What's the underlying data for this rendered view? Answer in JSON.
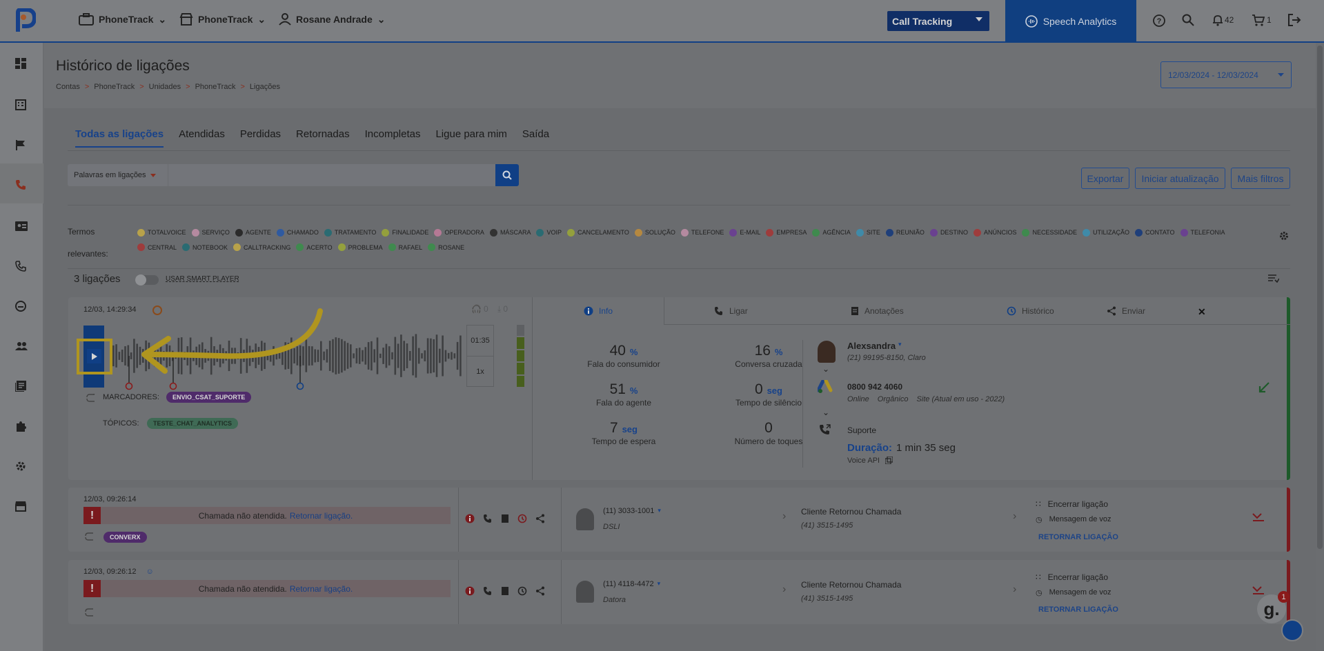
{
  "topbar": {
    "account1": "PhoneTrack",
    "account2": "PhoneTrack",
    "user": "Rosane Andrade",
    "product_select": "Call Tracking",
    "speech_analytics": "Speech Analytics",
    "notifications": "42",
    "cart": "1"
  },
  "page": {
    "title": "Histórico de ligações",
    "breadcrumb": [
      "Contas",
      "PhoneTrack",
      "Unidades",
      "PhoneTrack",
      "Ligações"
    ],
    "date_range": "12/03/2024 - 12/03/2024"
  },
  "tabs": [
    "Todas as ligações",
    "Atendidas",
    "Perdidas",
    "Retornadas",
    "Incompletas",
    "Ligue para mim",
    "Saída"
  ],
  "search": {
    "filter_label": "Palavras em ligações",
    "placeholder": ""
  },
  "actions": {
    "export": "Exportar",
    "refresh": "Iniciar atualização",
    "more_filters": "Mais filtros"
  },
  "terms": {
    "label_line1": "Termos",
    "label_line2": "relevantes:",
    "items": [
      {
        "label": "TOTALVOICE",
        "color": "#b8a24a"
      },
      {
        "label": "SERVIÇO",
        "color": "#b58aa0"
      },
      {
        "label": "AGENTE",
        "color": "#2b2b2b"
      },
      {
        "label": "CHAMADO",
        "color": "#2f5aa0"
      },
      {
        "label": "TRATAMENTO",
        "color": "#2a6b72"
      },
      {
        "label": "FINALIDADE",
        "color": "#94a03d"
      },
      {
        "label": "OPERADORA",
        "color": "#b57995"
      },
      {
        "label": "MÁSCARA",
        "color": "#333333"
      },
      {
        "label": "VOIP",
        "color": "#2a6b72"
      },
      {
        "label": "CANCELAMENTO",
        "color": "#94a03d"
      },
      {
        "label": "SOLUÇÃO",
        "color": "#b58840"
      },
      {
        "label": "TELEFONE",
        "color": "#b58aa0"
      },
      {
        "label": "E-MAIL",
        "color": "#6a4190"
      },
      {
        "label": "EMPRESA",
        "color": "#9e3c3c"
      },
      {
        "label": "AGÊNCIA",
        "color": "#3f8a4e"
      },
      {
        "label": "SITE",
        "color": "#3f8aa8"
      },
      {
        "label": "REUNIÃO",
        "color": "#1f3f7a"
      },
      {
        "label": "DESTINO",
        "color": "#6a4190"
      },
      {
        "label": "ANÚNCIOS",
        "color": "#9e3c3c"
      },
      {
        "label": "NECESSIDADE",
        "color": "#3f8a4e"
      },
      {
        "label": "UTILIZAÇÃO",
        "color": "#3f8aa8"
      },
      {
        "label": "CONTATO",
        "color": "#1f3f7a"
      },
      {
        "label": "TELEFONIA",
        "color": "#6a4190"
      },
      {
        "label": "CENTRAL",
        "color": "#9e3c3c"
      },
      {
        "label": "NOTEBOOK",
        "color": "#2a6b72"
      },
      {
        "label": "CALLTRACKING",
        "color": "#b8a24a"
      },
      {
        "label": "ACERTO",
        "color": "#3f8a4e"
      },
      {
        "label": "PROBLEMA",
        "color": "#94a03d"
      },
      {
        "label": "RAFAEL",
        "color": "#3f8a4e"
      },
      {
        "label": "ROSANE",
        "color": "#3f8a4e"
      }
    ]
  },
  "list": {
    "count": "3 ligações",
    "smart_player": "USAR SMART PLAYER"
  },
  "call1": {
    "datetime": "12/03, 14:29:34",
    "listen_count": "0",
    "download_count": "0",
    "duration": "01:35",
    "speed": "1x",
    "markers_label": "MARCADORES:",
    "marker_chip": "ENVIO_CSAT_SUPORTE",
    "topics_label": "TÓPICOS:",
    "topic_chip": "TESTE_CHAT_ANALYTICS",
    "tabs": [
      "Info",
      "Ligar",
      "Anotações",
      "Histórico",
      "Enviar"
    ],
    "stats": [
      {
        "value": "40",
        "unit": "%",
        "label": "Fala do consumidor"
      },
      {
        "value": "16",
        "unit": "%",
        "label": "Conversa cruzada"
      },
      {
        "value": "51",
        "unit": "%",
        "label": "Fala do agente"
      },
      {
        "value": "0",
        "unit": "seg",
        "label": "Tempo de silêncio"
      },
      {
        "value": "7",
        "unit": "seg",
        "label": "Tempo de espera"
      },
      {
        "value": "0",
        "unit": "",
        "label": "Número de toques"
      }
    ],
    "caller_name": "Alexsandra",
    "caller_phone": "(21) 99195-8150, Claro",
    "number": "0800 942 4060",
    "source_online": "Online",
    "source_organic": "Orgânico",
    "source_site": "Site (Atual em uso - 2022)",
    "queue": "Suporte",
    "duration_label": "Duração:",
    "duration_value": "1 min 35 seg",
    "voice_api": "Voice API"
  },
  "call2": {
    "datetime": "12/03, 09:26:14",
    "missed_text": "Chamada não atendida.",
    "return_link": "Retornar ligação.",
    "chip": "CONVERX",
    "phone": "(11) 3033-1001",
    "operator": "DSLI",
    "destination": "Cliente Retornou Chamada",
    "destination_phone": "(41) 3515-1495",
    "end": "Encerrar ligação",
    "voicemail": "Mensagem de voz",
    "return_btn": "RETORNAR LIGAÇÃO"
  },
  "call3": {
    "datetime": "12/03, 09:26:12",
    "missed_text": "Chamada não atendida.",
    "return_link": "Retornar ligação.",
    "phone": "(11) 4118-4472",
    "operator": "Datora",
    "destination": "Cliente Retornou Chamada",
    "destination_phone": "(41) 3515-1495",
    "end": "Encerrar ligação",
    "voicemail": "Mensagem de voz",
    "return_btn": "RETORNAR LIGAÇÃO"
  },
  "chat_widget": {
    "badge": "1"
  }
}
